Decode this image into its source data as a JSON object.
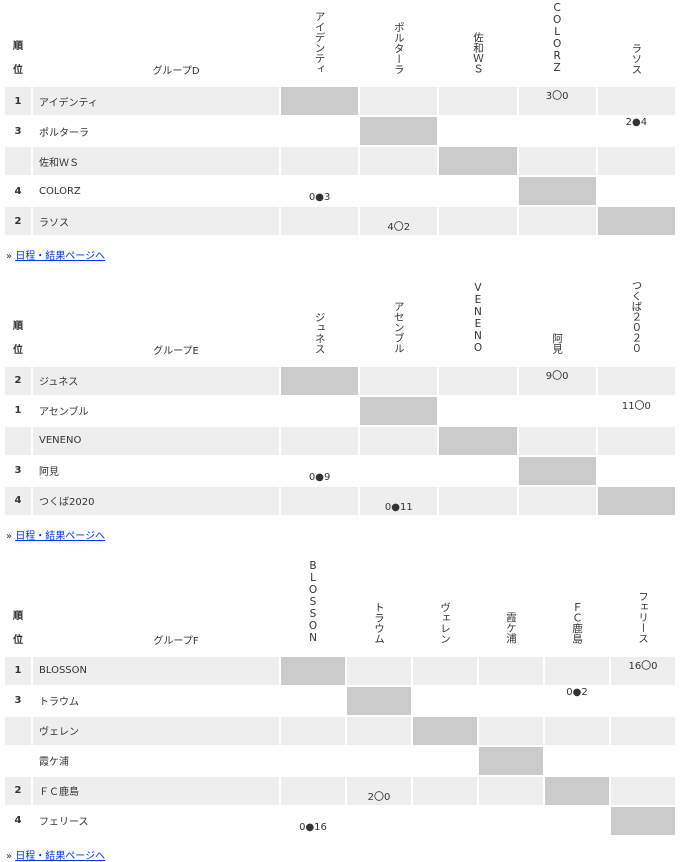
{
  "rank_header": [
    "順",
    "位"
  ],
  "link_prefix": "»",
  "link_label": "日程・結果ページへ",
  "colors": {
    "odd_row": "#eeeeee",
    "diagonal": "#cbcbcb",
    "link": "#0033ee"
  },
  "groups": [
    {
      "title": "グループD",
      "teams": [
        "アイデンティ",
        "ポルターラ",
        "佐和ＷＳ",
        "COLORZ",
        "ラソス"
      ],
      "headers": [
        "アイデンティ",
        "ポルターラ",
        "佐和ＷＳ",
        "COLORZ",
        "ラソス"
      ],
      "ranks": [
        "1",
        "3",
        "",
        "4",
        "2"
      ],
      "results": [
        [
          "",
          "",
          "",
          "3〇0",
          ""
        ],
        [
          "",
          "",
          "",
          "",
          "2●4"
        ],
        [
          "",
          "",
          "",
          "",
          ""
        ],
        [
          "0●3",
          "",
          "",
          "",
          ""
        ],
        [
          "",
          "4〇2",
          "",
          "",
          ""
        ]
      ]
    },
    {
      "title": "グループE",
      "teams": [
        "ジュネス",
        "アセンブル",
        "VENENO",
        "阿見",
        "つくば2020"
      ],
      "headers": [
        "ジュネス",
        "アセンブル",
        "VENENO",
        "阿見",
        "つくば２０２０"
      ],
      "ranks": [
        "2",
        "1",
        "",
        "3",
        "4"
      ],
      "results": [
        [
          "",
          "",
          "",
          "9〇0",
          ""
        ],
        [
          "",
          "",
          "",
          "",
          "11〇0"
        ],
        [
          "",
          "",
          "",
          "",
          ""
        ],
        [
          "0●9",
          "",
          "",
          "",
          ""
        ],
        [
          "",
          "0●11",
          "",
          "",
          ""
        ]
      ]
    },
    {
      "title": "グループF",
      "teams": [
        "BLOSSON",
        "トラウム",
        "ヴェレン",
        "霞ケ浦",
        "ＦＣ鹿島",
        "フェリース"
      ],
      "headers": [
        "BLOSSON",
        "トラウム",
        "ヴェレン",
        "霞ケ浦",
        "ＦＣ鹿島",
        "フェリース"
      ],
      "ranks": [
        "1",
        "3",
        "",
        "",
        "2",
        "4"
      ],
      "results": [
        [
          "",
          "",
          "",
          "",
          "",
          "16〇0"
        ],
        [
          "",
          "",
          "",
          "",
          "0●2",
          ""
        ],
        [
          "",
          "",
          "",
          "",
          "",
          ""
        ],
        [
          "",
          "",
          "",
          "",
          "",
          ""
        ],
        [
          "",
          "2〇0",
          "",
          "",
          "",
          ""
        ],
        [
          "0●16",
          "",
          "",
          "",
          "",
          ""
        ]
      ]
    }
  ]
}
